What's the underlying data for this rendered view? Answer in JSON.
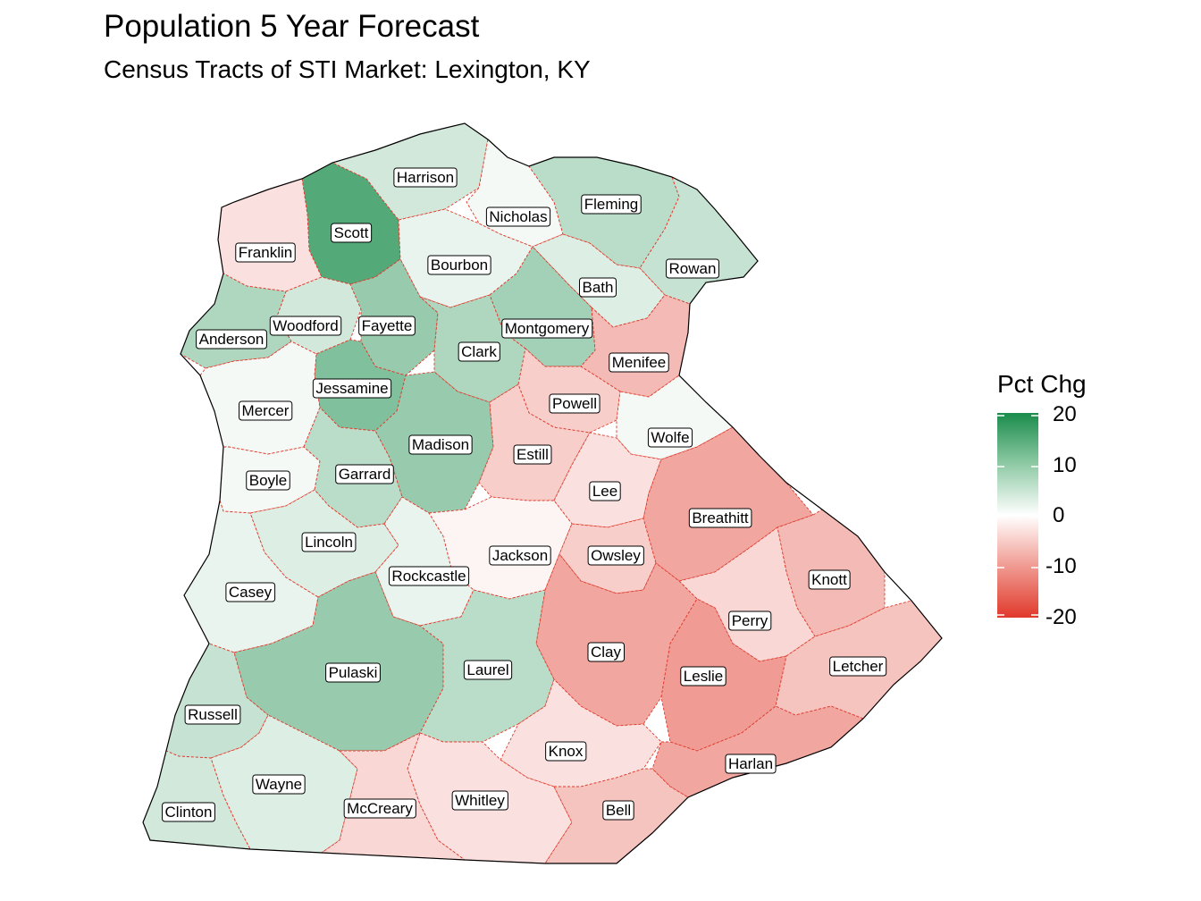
{
  "title": "Population 5 Year Forecast",
  "subtitle": "Census Tracts of STI Market: Lexington, KY",
  "legend": {
    "title": "Pct Chg",
    "ticks": [
      "20",
      "10",
      "0",
      "-10",
      "-20"
    ],
    "colors": {
      "high": "#1a8c4b",
      "mid": "#ffffff",
      "low": "#e0392b"
    },
    "range": [
      -20,
      20
    ]
  },
  "counties": [
    {
      "name": "Harrison",
      "pct": 4
    },
    {
      "name": "Nicholas",
      "pct": 1
    },
    {
      "name": "Fleming",
      "pct": 6
    },
    {
      "name": "Scott",
      "pct": 15
    },
    {
      "name": "Franklin",
      "pct": -3
    },
    {
      "name": "Bourbon",
      "pct": 2
    },
    {
      "name": "Rowan",
      "pct": 5
    },
    {
      "name": "Bath",
      "pct": 3
    },
    {
      "name": "Woodford",
      "pct": 4
    },
    {
      "name": "Fayette",
      "pct": 9
    },
    {
      "name": "Anderson",
      "pct": 7
    },
    {
      "name": "Montgomery",
      "pct": 8
    },
    {
      "name": "Clark",
      "pct": 7
    },
    {
      "name": "Menifee",
      "pct": -7
    },
    {
      "name": "Jessamine",
      "pct": 11
    },
    {
      "name": "Powell",
      "pct": -5
    },
    {
      "name": "Mercer",
      "pct": 1
    },
    {
      "name": "Wolfe",
      "pct": 1
    },
    {
      "name": "Madison",
      "pct": 9
    },
    {
      "name": "Estill",
      "pct": -5
    },
    {
      "name": "Boyle",
      "pct": 1
    },
    {
      "name": "Garrard",
      "pct": 6
    },
    {
      "name": "Lee",
      "pct": -3
    },
    {
      "name": "Breathitt",
      "pct": -9
    },
    {
      "name": "Lincoln",
      "pct": 3
    },
    {
      "name": "Jackson",
      "pct": -1
    },
    {
      "name": "Owsley",
      "pct": -5
    },
    {
      "name": "Rockcastle",
      "pct": 2
    },
    {
      "name": "Knott",
      "pct": -7
    },
    {
      "name": "Casey",
      "pct": 2
    },
    {
      "name": "Perry",
      "pct": -4
    },
    {
      "name": "Clay",
      "pct": -9
    },
    {
      "name": "Pulaski",
      "pct": 9
    },
    {
      "name": "Laurel",
      "pct": 6
    },
    {
      "name": "Leslie",
      "pct": -10
    },
    {
      "name": "Letcher",
      "pct": -6
    },
    {
      "name": "Russell",
      "pct": 5
    },
    {
      "name": "Knox",
      "pct": -3
    },
    {
      "name": "Harlan",
      "pct": -9
    },
    {
      "name": "Wayne",
      "pct": 3
    },
    {
      "name": "Whitley",
      "pct": -3
    },
    {
      "name": "Bell",
      "pct": -6
    },
    {
      "name": "Clinton",
      "pct": 4
    },
    {
      "name": "McCreary",
      "pct": -4
    }
  ]
}
